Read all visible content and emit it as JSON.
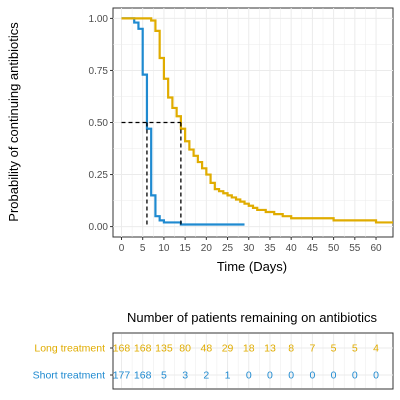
{
  "chart_data": [
    {
      "type": "line",
      "ylabel": "Probability of continuing antibiotics",
      "xlabel": "Time (Days)",
      "xlim": [
        -2,
        64
      ],
      "ylim": [
        -0.05,
        1.05
      ],
      "x_ticks": [
        0,
        5,
        10,
        15,
        20,
        25,
        30,
        35,
        40,
        45,
        50,
        55,
        60
      ],
      "y_ticks": [
        "0.00",
        "0.25",
        "0.50",
        "0.75",
        "1.00"
      ],
      "y_tick_values": [
        0,
        0.25,
        0.5,
        0.75,
        1.0
      ],
      "grid": true,
      "colors": {
        "long": "#E0AC00",
        "short": "#1F8AD0",
        "median_line": "#000000",
        "grid": "#EBEBEB"
      },
      "series": [
        {
          "key": "short",
          "x": [
            0,
            3,
            4,
            5,
            6,
            7,
            8,
            9,
            10,
            14,
            29
          ],
          "y": [
            1.0,
            0.98,
            0.95,
            0.73,
            0.47,
            0.15,
            0.05,
            0.03,
            0.02,
            0.01,
            0.01
          ]
        },
        {
          "key": "long",
          "x": [
            0,
            7,
            8,
            9,
            10,
            11,
            12,
            13,
            14,
            15,
            16,
            17,
            18,
            19,
            20,
            21,
            22,
            23,
            24,
            25,
            26,
            27,
            28,
            29,
            30,
            31,
            32,
            34,
            36,
            38,
            40,
            45,
            50,
            55,
            60,
            64
          ],
          "y": [
            1.0,
            0.99,
            0.94,
            0.81,
            0.71,
            0.62,
            0.57,
            0.53,
            0.47,
            0.41,
            0.37,
            0.34,
            0.31,
            0.28,
            0.25,
            0.21,
            0.18,
            0.17,
            0.16,
            0.15,
            0.14,
            0.13,
            0.12,
            0.11,
            0.1,
            0.09,
            0.08,
            0.07,
            0.06,
            0.05,
            0.04,
            0.04,
            0.03,
            0.03,
            0.02,
            0.02
          ]
        }
      ],
      "median_markers": [
        {
          "x": 6,
          "y": 0.5
        },
        {
          "x": 14,
          "y": 0.5
        }
      ]
    },
    {
      "type": "table",
      "title": "Number of patients remaining on antibiotics",
      "x": [
        0,
        5,
        10,
        15,
        20,
        25,
        30,
        35,
        40,
        45,
        50,
        55,
        60
      ],
      "rows": [
        {
          "label": "Long treatment",
          "color": "#E0AC00",
          "values": [
            "168",
            "168",
            "135",
            "80",
            "48",
            "29",
            "18",
            "13",
            "8",
            "7",
            "5",
            "5",
            "4"
          ]
        },
        {
          "label": "Short treatment",
          "color": "#1F8AD0",
          "values": [
            "177",
            "168",
            "5",
            "3",
            "2",
            "1",
            "0",
            "0",
            "0",
            "0",
            "0",
            "0",
            "0"
          ]
        }
      ]
    }
  ]
}
